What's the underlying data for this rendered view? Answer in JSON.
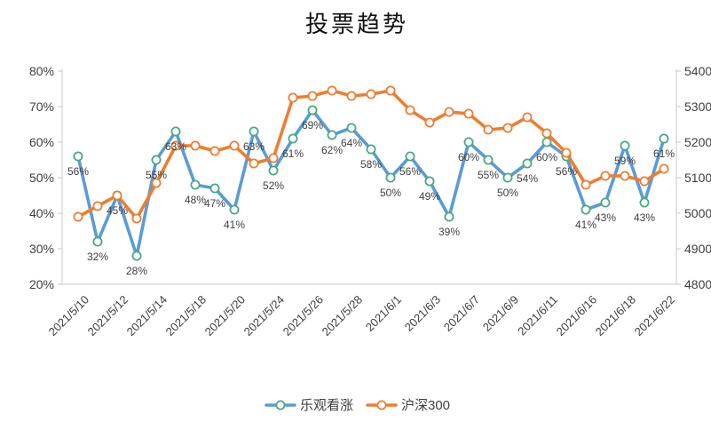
{
  "chart_data": {
    "type": "line",
    "title": "投票趋势",
    "x_tick_labels": [
      "2021/5/10",
      "2021/5/12",
      "2021/5/14",
      "2021/5/18",
      "2021/5/20",
      "2021/5/24",
      "2021/5/26",
      "2021/5/28",
      "2021/6/1",
      "2021/6/3",
      "2021/6/7",
      "2021/6/9",
      "2021/6/11",
      "2021/6/16",
      "2021/6/18",
      "2021/6/22"
    ],
    "x_tick_indices": [
      0,
      2,
      4,
      6,
      8,
      10,
      12,
      14,
      16,
      18,
      20,
      22,
      24,
      26,
      28,
      30
    ],
    "n_points": 31,
    "left_axis": {
      "min": 20,
      "max": 80,
      "tick_step": 10,
      "ticks_top_to_bottom": [
        "80%",
        "70%",
        "60%",
        "50%",
        "40%",
        "30%",
        "20%"
      ]
    },
    "right_axis": {
      "min": 4800,
      "max": 5400,
      "tick_step": 100,
      "ticks_top_to_bottom": [
        "5400",
        "5300",
        "5200",
        "5100",
        "5000",
        "4900",
        "4800"
      ]
    },
    "grid": "off",
    "legend_position": "bottom-center",
    "series": [
      {
        "name": "乐观看涨",
        "axis": "left",
        "line_color": "#5B9BD5",
        "marker_ring_color": "#4AA884",
        "marker_fill": "#FFFFFF",
        "show_labels": true,
        "label_suffix": "%",
        "values": [
          56,
          32,
          45,
          28,
          55,
          63,
          48,
          47,
          41,
          63,
          52,
          61,
          69,
          62,
          64,
          58,
          50,
          56,
          49,
          39,
          60,
          55,
          50,
          54,
          60,
          56,
          41,
          43,
          59,
          43,
          61
        ]
      },
      {
        "name": "沪深300",
        "axis": "right",
        "line_color": "#ED7D31",
        "marker_ring_color": "#ED7D31",
        "marker_fill": "#FFFFFF",
        "show_labels": false,
        "values": [
          4990,
          5020,
          5050,
          4985,
          5085,
          5190,
          5190,
          5175,
          5190,
          5140,
          5155,
          5325,
          5330,
          5345,
          5330,
          5335,
          5345,
          5290,
          5255,
          5285,
          5280,
          5235,
          5240,
          5270,
          5225,
          5170,
          5080,
          5105,
          5105,
          5090,
          5125
        ]
      }
    ],
    "colors": {
      "axis_line": "#C9C9C9",
      "tick_text": "#3F3F3F",
      "data_label_text": "#3F3F3F",
      "background": "#FFFFFF"
    }
  }
}
